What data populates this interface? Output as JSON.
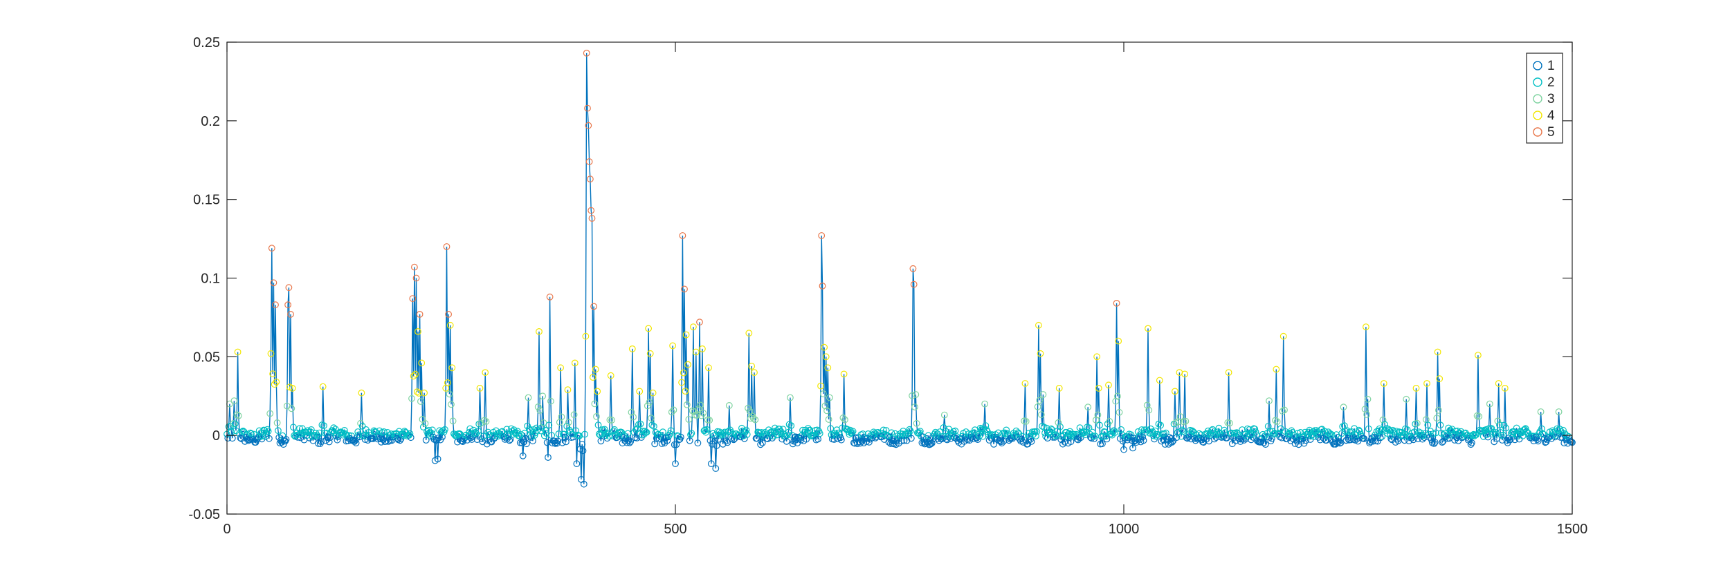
{
  "chart_data": {
    "type": "scatter",
    "title": "",
    "xlabel": "",
    "ylabel": "",
    "xlim": [
      0,
      1500
    ],
    "ylim": [
      -0.05,
      0.25
    ],
    "x_ticks": [
      0,
      500,
      1000,
      1500
    ],
    "x_tick_labels": [
      "0",
      "500",
      "1000",
      "1500"
    ],
    "y_ticks": [
      -0.05,
      0,
      0.05,
      0.1,
      0.15,
      0.2,
      0.25
    ],
    "y_tick_labels": [
      "-0.05",
      "0",
      "0.05",
      "0.1",
      "0.15",
      "0.2",
      "0.25"
    ],
    "grid": false,
    "box": true,
    "legend_location": "top-right",
    "line_color": "#0072BD",
    "marker": "circle",
    "series": [
      {
        "name": "1",
        "color": "#0072BD"
      },
      {
        "name": "2",
        "color": "#00BFC4"
      },
      {
        "name": "3",
        "color": "#7FD3A0"
      },
      {
        "name": "4",
        "color": "#F2E600"
      },
      {
        "name": "5",
        "color": "#E8764A"
      }
    ],
    "baseline": 0.0,
    "num_points": 1500,
    "peaks": [
      {
        "x": 3,
        "y": 0.02
      },
      {
        "x": 8,
        "y": 0.022
      },
      {
        "x": 12,
        "y": 0.053
      },
      {
        "x": 49,
        "y": 0.052
      },
      {
        "x": 50,
        "y": 0.119
      },
      {
        "x": 52,
        "y": 0.097
      },
      {
        "x": 54,
        "y": 0.083
      },
      {
        "x": 55,
        "y": 0.034
      },
      {
        "x": 68,
        "y": 0.083
      },
      {
        "x": 69,
        "y": 0.094
      },
      {
        "x": 71,
        "y": 0.077
      },
      {
        "x": 73,
        "y": 0.03
      },
      {
        "x": 107,
        "y": 0.031
      },
      {
        "x": 150,
        "y": 0.027
      },
      {
        "x": 207,
        "y": 0.087
      },
      {
        "x": 209,
        "y": 0.107
      },
      {
        "x": 211,
        "y": 0.1
      },
      {
        "x": 213,
        "y": 0.066
      },
      {
        "x": 215,
        "y": 0.077
      },
      {
        "x": 217,
        "y": 0.046
      },
      {
        "x": 220,
        "y": 0.027
      },
      {
        "x": 245,
        "y": 0.12
      },
      {
        "x": 247,
        "y": 0.077
      },
      {
        "x": 249,
        "y": 0.07
      },
      {
        "x": 251,
        "y": 0.043
      },
      {
        "x": 282,
        "y": 0.03
      },
      {
        "x": 288,
        "y": 0.04
      },
      {
        "x": 336,
        "y": 0.024
      },
      {
        "x": 348,
        "y": 0.066
      },
      {
        "x": 352,
        "y": 0.025
      },
      {
        "x": 360,
        "y": 0.088
      },
      {
        "x": 372,
        "y": 0.043
      },
      {
        "x": 380,
        "y": 0.029
      },
      {
        "x": 388,
        "y": 0.046
      },
      {
        "x": 390,
        "y": 0.038
      },
      {
        "x": 400,
        "y": 0.063
      },
      {
        "x": 401,
        "y": 0.243
      },
      {
        "x": 402,
        "y": 0.208
      },
      {
        "x": 403,
        "y": 0.197
      },
      {
        "x": 404,
        "y": 0.174
      },
      {
        "x": 405,
        "y": 0.163
      },
      {
        "x": 406,
        "y": 0.143
      },
      {
        "x": 407,
        "y": 0.138
      },
      {
        "x": 409,
        "y": 0.082
      },
      {
        "x": 411,
        "y": 0.042
      },
      {
        "x": 413,
        "y": 0.028
      },
      {
        "x": 428,
        "y": 0.038
      },
      {
        "x": 452,
        "y": 0.055
      },
      {
        "x": 460,
        "y": 0.028
      },
      {
        "x": 470,
        "y": 0.068
      },
      {
        "x": 472,
        "y": 0.052
      },
      {
        "x": 475,
        "y": 0.027
      },
      {
        "x": 497,
        "y": 0.057
      },
      {
        "x": 508,
        "y": 0.127
      },
      {
        "x": 510,
        "y": 0.093
      },
      {
        "x": 512,
        "y": 0.064
      },
      {
        "x": 514,
        "y": 0.045
      },
      {
        "x": 520,
        "y": 0.069
      },
      {
        "x": 523,
        "y": 0.053
      },
      {
        "x": 527,
        "y": 0.072
      },
      {
        "x": 530,
        "y": 0.055
      },
      {
        "x": 537,
        "y": 0.043
      },
      {
        "x": 560,
        "y": 0.019
      },
      {
        "x": 582,
        "y": 0.065
      },
      {
        "x": 585,
        "y": 0.044
      },
      {
        "x": 588,
        "y": 0.04
      },
      {
        "x": 628,
        "y": 0.024
      },
      {
        "x": 663,
        "y": 0.127
      },
      {
        "x": 664,
        "y": 0.095
      },
      {
        "x": 666,
        "y": 0.056
      },
      {
        "x": 668,
        "y": 0.05
      },
      {
        "x": 670,
        "y": 0.043
      },
      {
        "x": 672,
        "y": 0.024
      },
      {
        "x": 688,
        "y": 0.039
      },
      {
        "x": 765,
        "y": 0.106
      },
      {
        "x": 766,
        "y": 0.096
      },
      {
        "x": 768,
        "y": 0.026
      },
      {
        "x": 800,
        "y": 0.013
      },
      {
        "x": 845,
        "y": 0.02
      },
      {
        "x": 890,
        "y": 0.033
      },
      {
        "x": 905,
        "y": 0.07
      },
      {
        "x": 907,
        "y": 0.052
      },
      {
        "x": 910,
        "y": 0.026
      },
      {
        "x": 928,
        "y": 0.03
      },
      {
        "x": 960,
        "y": 0.018
      },
      {
        "x": 970,
        "y": 0.05
      },
      {
        "x": 972,
        "y": 0.03
      },
      {
        "x": 983,
        "y": 0.032
      },
      {
        "x": 992,
        "y": 0.084
      },
      {
        "x": 994,
        "y": 0.06
      },
      {
        "x": 1027,
        "y": 0.068
      },
      {
        "x": 1040,
        "y": 0.035
      },
      {
        "x": 1057,
        "y": 0.028
      },
      {
        "x": 1062,
        "y": 0.04
      },
      {
        "x": 1068,
        "y": 0.039
      },
      {
        "x": 1117,
        "y": 0.04
      },
      {
        "x": 1162,
        "y": 0.022
      },
      {
        "x": 1170,
        "y": 0.042
      },
      {
        "x": 1178,
        "y": 0.063
      },
      {
        "x": 1245,
        "y": 0.018
      },
      {
        "x": 1270,
        "y": 0.069
      },
      {
        "x": 1272,
        "y": 0.023
      },
      {
        "x": 1290,
        "y": 0.033
      },
      {
        "x": 1315,
        "y": 0.023
      },
      {
        "x": 1326,
        "y": 0.03
      },
      {
        "x": 1338,
        "y": 0.033
      },
      {
        "x": 1350,
        "y": 0.053
      },
      {
        "x": 1352,
        "y": 0.036
      },
      {
        "x": 1395,
        "y": 0.051
      },
      {
        "x": 1408,
        "y": 0.02
      },
      {
        "x": 1418,
        "y": 0.033
      },
      {
        "x": 1425,
        "y": 0.03
      },
      {
        "x": 1465,
        "y": 0.015
      },
      {
        "x": 1485,
        "y": 0.015
      }
    ],
    "dips": [
      {
        "x": 390,
        "y": -0.018
      },
      {
        "x": 395,
        "y": -0.028
      },
      {
        "x": 398,
        "y": -0.031
      },
      {
        "x": 232,
        "y": -0.016
      },
      {
        "x": 235,
        "y": -0.015
      },
      {
        "x": 500,
        "y": -0.018
      },
      {
        "x": 540,
        "y": -0.018
      },
      {
        "x": 545,
        "y": -0.021
      },
      {
        "x": 330,
        "y": -0.013
      },
      {
        "x": 358,
        "y": -0.014
      },
      {
        "x": 1000,
        "y": -0.009
      },
      {
        "x": 1010,
        "y": -0.008
      }
    ]
  }
}
